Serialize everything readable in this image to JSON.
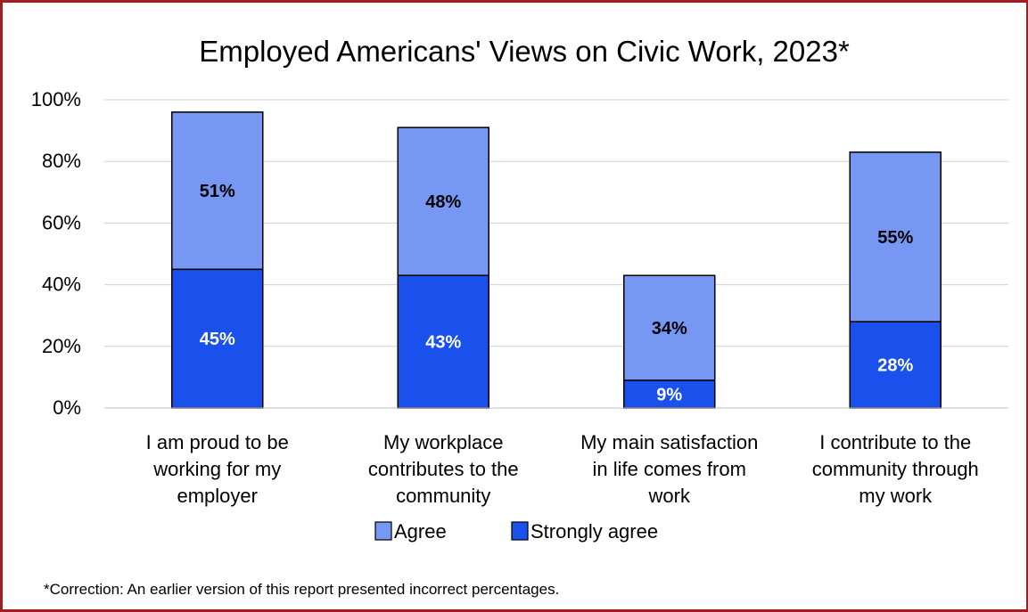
{
  "chart_data": {
    "type": "bar",
    "stacked": true,
    "title": "Employed Americans' Views on Civic Work, 2023*",
    "categories": [
      [
        "I am proud to be",
        "working for my",
        "employer"
      ],
      [
        "My workplace",
        "contributes to the",
        "community"
      ],
      [
        "My main satisfaction",
        "in life comes from",
        "work"
      ],
      [
        "I contribute to the",
        "community through",
        "my work"
      ]
    ],
    "series": [
      {
        "name": "Strongly agree",
        "values": [
          45,
          43,
          9,
          28
        ],
        "color": "#1a50ec",
        "label_color": "#ffffff"
      },
      {
        "name": "Agree",
        "values": [
          51,
          48,
          34,
          55
        ],
        "color": "#7697f2",
        "label_color": "#000000"
      }
    ],
    "data_labels": [
      "45%",
      "43%",
      "9%",
      "28%",
      "51%",
      "48%",
      "34%",
      "55%"
    ],
    "ylim": [
      0,
      100
    ],
    "yticks": [
      0,
      20,
      40,
      60,
      80,
      100
    ],
    "ytick_labels": [
      "0%",
      "20%",
      "40%",
      "60%",
      "80%",
      "100%"
    ],
    "grid": true,
    "legend": {
      "position": "bottom",
      "items": [
        {
          "label": "Agree",
          "color": "#7697f2"
        },
        {
          "label": "Strongly agree",
          "color": "#1a50ec"
        }
      ]
    }
  },
  "footnote": "*Correction: An earlier version of this report presented incorrect percentages."
}
